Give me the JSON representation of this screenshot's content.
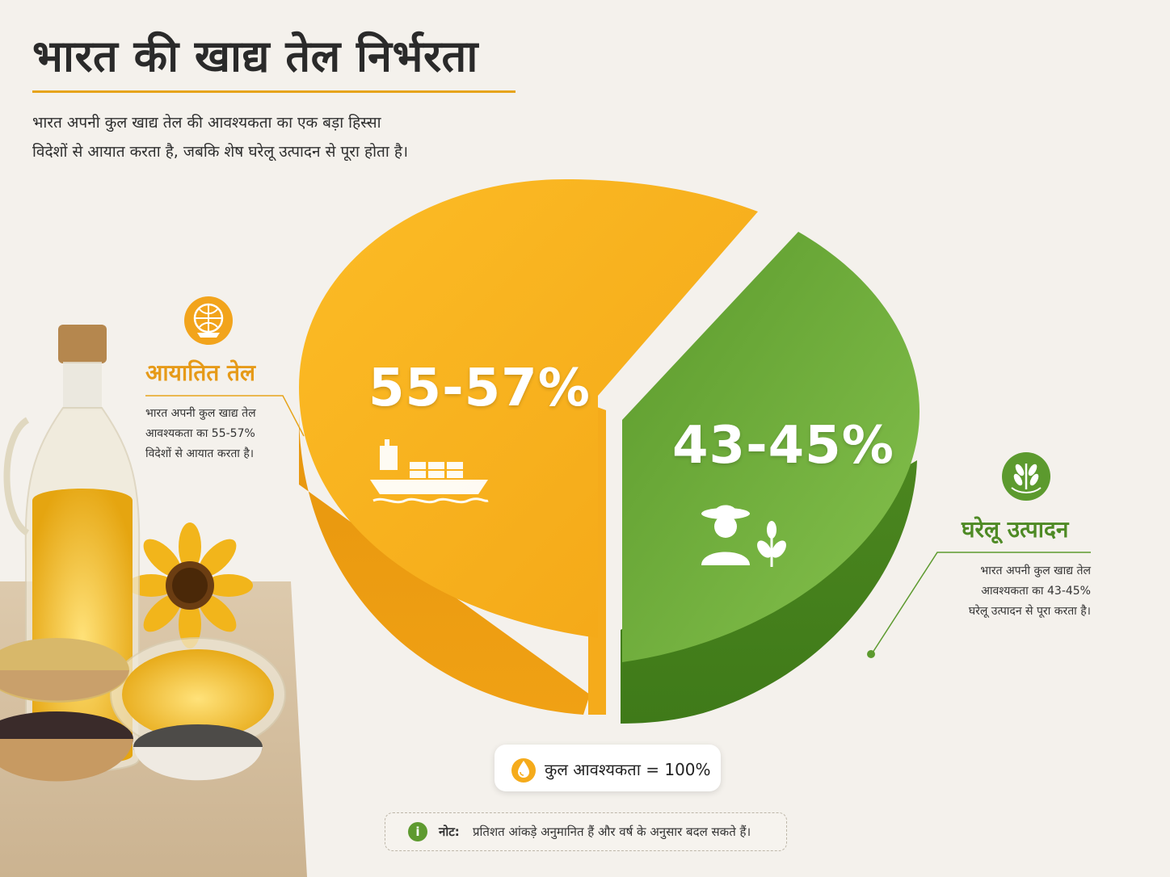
{
  "header": {
    "title": "भारत की खाद्य तेल निर्भरता",
    "subtitle_line1": "भारत अपनी कुल खाद्य तेल की आवश्यकता का एक बड़ा हिस्सा",
    "subtitle_line2": "विदेशों से आयात करता है, जबकि शेष घरेलू उत्पादन से पूरा होता है।"
  },
  "chart_data": {
    "type": "pie",
    "title": "भारत की खाद्य तेल निर्भरता",
    "slices": [
      {
        "name": "आयातित तेल",
        "value_range": [
          55,
          57
        ],
        "label": "55-57%",
        "color": "#f5ab1b",
        "description_lines": [
          "भारत अपनी कुल खाद्य तेल",
          "आवश्यकता का 55-57%",
          "विदेशों से आयात करता है।"
        ],
        "icon": "globe-ship-icon",
        "slice_icon": "cargo-ship-icon"
      },
      {
        "name": "घरेलू उत्पादन",
        "value_range": [
          43,
          45
        ],
        "label": "43-45%",
        "color": "#6aaa38",
        "description_lines": [
          "भारत अपनी कुल खाद्य तेल",
          "आवश्यकता का 43-45%",
          "घरेलू उत्पादन से पूरा करता है।"
        ],
        "icon": "wheat-leaf-icon",
        "slice_icon": "farmer-plant-icon"
      }
    ],
    "total_label": "कुल आवश्यकता = 100%",
    "legend": "none"
  },
  "note": {
    "label": "नोट:",
    "text": "प्रतिशत आंकड़े अनुमानित हैं और वर्ष के अनुसार बदल सकते हैं।",
    "icon": "info-icon"
  },
  "decor": {
    "illustration": "oil-bottle-sunflower-seeds-illustration"
  }
}
